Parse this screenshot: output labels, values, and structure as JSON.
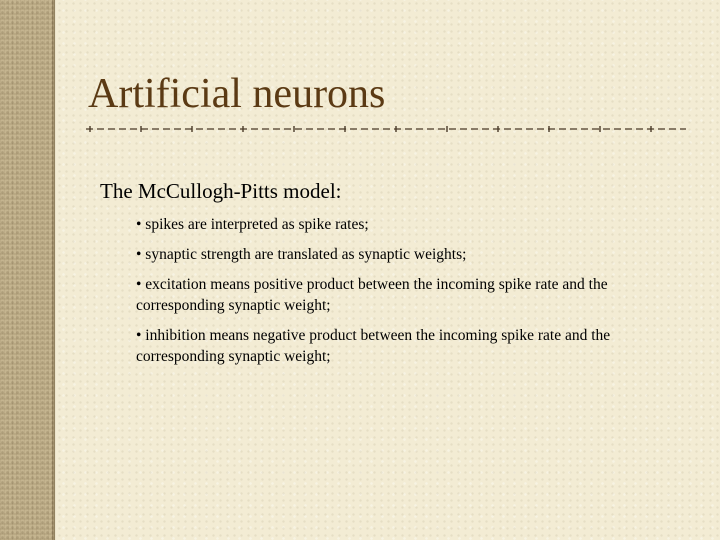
{
  "slide": {
    "title": "Artificial neurons",
    "heading": "The McCullogh-Pitts model:",
    "bullets": [
      "• spikes are interpreted as spike rates;",
      "• synaptic strength are translated as synaptic weights;",
      "• excitation means positive product between the incoming spike rate and the corresponding synaptic weight;",
      "• inhibition means negative product between the incoming spike rate and the corresponding synaptic weight;"
    ]
  },
  "colors": {
    "background": "#f3ecd4",
    "left_bar": "#c4b48f",
    "title": "#5b3a14",
    "divider": "#4a3a28",
    "text": "#000000"
  }
}
